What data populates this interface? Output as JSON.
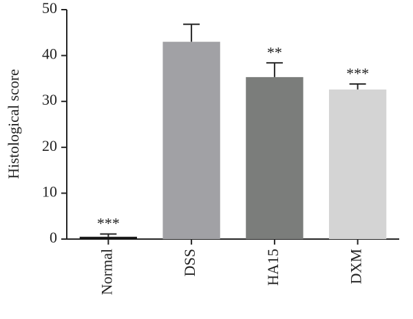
{
  "chart_data": {
    "type": "bar",
    "y_label": "Histological score",
    "categories": [
      "Normal",
      "DSS",
      "HA15",
      "DXM"
    ],
    "values": [
      0.5,
      43,
      35.3,
      32.6
    ],
    "errors": [
      0.6,
      3.8,
      3.1,
      1.2
    ],
    "colors": [
      "#151515",
      "#a1a1a5",
      "#7b7d7b",
      "#d4d4d4"
    ],
    "annotations": [
      "***",
      null,
      "**",
      "***"
    ],
    "ylim": [
      0,
      50
    ],
    "yticks": [
      0,
      10,
      20,
      30,
      40,
      50
    ]
  }
}
